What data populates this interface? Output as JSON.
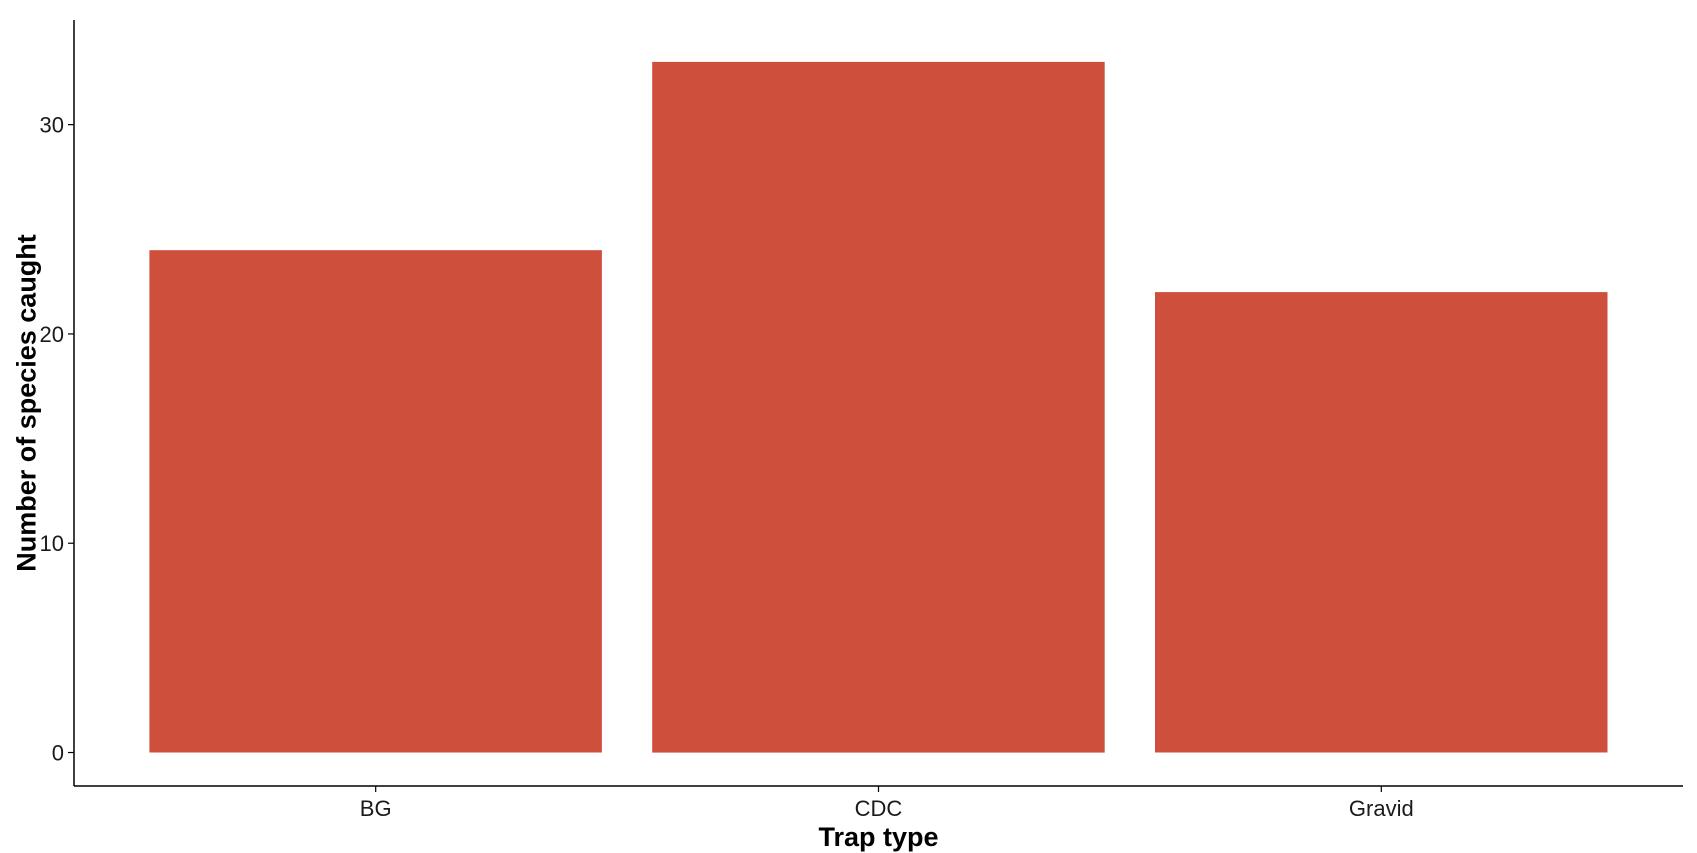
{
  "chart_data": {
    "type": "bar",
    "title": "",
    "xlabel": "Trap type",
    "ylabel": "Number of species caught",
    "categories": [
      "BG",
      "CDC",
      "Gravid"
    ],
    "values": [
      24,
      33,
      22
    ],
    "ylim": [
      -1.6,
      35
    ],
    "yticks": [
      0,
      10,
      20,
      30
    ],
    "ytick_labels": [
      "0",
      "10",
      "20",
      "30"
    ],
    "grid": false,
    "legend": "none",
    "bar_color": "#CD4F3C",
    "axis_color": "#000000"
  }
}
